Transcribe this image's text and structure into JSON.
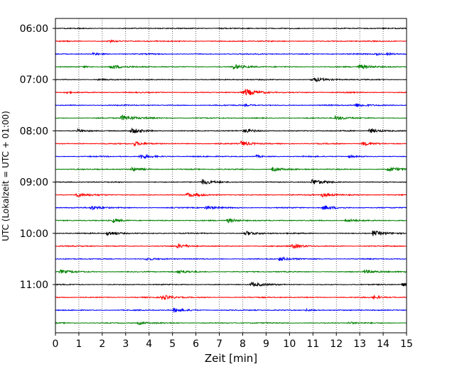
{
  "chart_data": {
    "type": "line",
    "subtype": "helicorder seismogram",
    "xlabel": "Zeit  [min]",
    "ylabel": "UTC (Lokalzeit = UTC + 01:00)",
    "xlim": [
      0,
      15
    ],
    "x_ticks": [
      0,
      1,
      2,
      3,
      4,
      5,
      6,
      7,
      8,
      9,
      10,
      11,
      12,
      13,
      14,
      15
    ],
    "y_tick_labels": [
      "06:00",
      "07:00",
      "08:00",
      "09:00",
      "10:00",
      "11:00"
    ],
    "rows_per_hour": 4,
    "minutes_per_row": 15,
    "row_count": 24,
    "color_cycle": [
      "#000000",
      "#ff0000",
      "#0000ff",
      "#008000"
    ],
    "vertical_grid": "dotted",
    "horizontal_grid": false,
    "series": [
      {
        "start": "06:00",
        "color": "#000000",
        "events": [
          [
            7.0,
            0.3,
            1.0
          ]
        ]
      },
      {
        "start": "06:15",
        "color": "#ff0000",
        "events": [
          [
            2.25,
            0.55,
            1.0
          ]
        ]
      },
      {
        "start": "06:30",
        "color": "#0000ff",
        "events": [
          [
            1.6,
            0.55,
            1.0
          ],
          [
            13.7,
            0.5,
            0.8
          ],
          [
            14.2,
            0.5,
            0.8
          ]
        ]
      },
      {
        "start": "06:45",
        "color": "#008000",
        "events": [
          [
            1.2,
            0.3,
            1.0
          ],
          [
            2.35,
            1.0,
            1.5
          ],
          [
            7.6,
            1.0,
            1.5
          ],
          [
            12.95,
            1.1,
            1.5
          ]
        ]
      },
      {
        "start": "07:00",
        "color": "#000000",
        "events": [
          [
            1.8,
            0.4,
            1.0
          ],
          [
            10.95,
            1.0,
            1.5
          ]
        ]
      },
      {
        "start": "07:15",
        "color": "#ff0000",
        "events": [
          [
            0.4,
            0.55,
            1.0
          ],
          [
            8.05,
            1.5,
            2.0
          ]
        ]
      },
      {
        "start": "07:30",
        "color": "#0000ff",
        "events": [
          [
            8.1,
            0.4,
            1.0
          ],
          [
            12.8,
            0.9,
            1.5
          ]
        ]
      },
      {
        "start": "07:45",
        "color": "#008000",
        "events": [
          [
            2.8,
            1.1,
            2.0
          ],
          [
            11.95,
            0.9,
            1.5
          ]
        ]
      },
      {
        "start": "08:00",
        "color": "#000000",
        "events": [
          [
            0.95,
            0.6,
            1.0
          ],
          [
            3.25,
            1.1,
            1.5
          ],
          [
            8.05,
            0.8,
            1.5
          ],
          [
            13.4,
            1.1,
            1.5
          ]
        ]
      },
      {
        "start": "08:15",
        "color": "#ff0000",
        "events": [
          [
            3.35,
            1.0,
            1.5
          ],
          [
            7.9,
            1.2,
            1.5
          ],
          [
            13.1,
            0.9,
            1.5
          ]
        ]
      },
      {
        "start": "08:30",
        "color": "#0000ff",
        "events": [
          [
            3.6,
            1.0,
            1.5
          ],
          [
            8.55,
            0.5,
            1.0
          ],
          [
            12.5,
            0.5,
            1.0
          ]
        ]
      },
      {
        "start": "08:45",
        "color": "#008000",
        "events": [
          [
            3.25,
            0.8,
            1.5
          ],
          [
            9.25,
            0.8,
            1.5
          ],
          [
            14.2,
            1.0,
            1.5
          ]
        ]
      },
      {
        "start": "09:00",
        "color": "#000000",
        "events": [
          [
            6.25,
            1.0,
            1.5
          ],
          [
            10.95,
            1.2,
            1.5
          ]
        ]
      },
      {
        "start": "09:15",
        "color": "#ff0000",
        "events": [
          [
            0.85,
            0.9,
            1.5
          ],
          [
            5.6,
            1.0,
            1.5
          ],
          [
            11.4,
            0.9,
            1.5
          ]
        ]
      },
      {
        "start": "09:30",
        "color": "#0000ff",
        "events": [
          [
            1.5,
            0.9,
            1.5
          ],
          [
            6.4,
            0.9,
            1.5
          ],
          [
            11.45,
            1.0,
            1.5
          ]
        ]
      },
      {
        "start": "09:45",
        "color": "#008000",
        "events": [
          [
            2.45,
            0.8,
            1.5
          ],
          [
            7.35,
            1.0,
            1.5
          ],
          [
            12.4,
            0.8,
            1.5
          ]
        ]
      },
      {
        "start": "10:00",
        "color": "#000000",
        "events": [
          [
            2.2,
            1.1,
            1.5
          ],
          [
            8.1,
            1.0,
            1.5
          ],
          [
            13.55,
            1.2,
            1.5
          ]
        ]
      },
      {
        "start": "10:15",
        "color": "#ff0000",
        "events": [
          [
            5.2,
            0.8,
            1.5
          ],
          [
            10.1,
            1.0,
            1.5
          ]
        ]
      },
      {
        "start": "10:30",
        "color": "#0000ff",
        "events": [
          [
            3.85,
            0.6,
            1.0
          ],
          [
            9.55,
            0.8,
            1.5
          ]
        ]
      },
      {
        "start": "10:45",
        "color": "#008000",
        "events": [
          [
            0.2,
            0.8,
            1.5
          ],
          [
            5.25,
            0.7,
            1.5
          ],
          [
            13.2,
            0.8,
            1.5
          ],
          [
            14.95,
            0.7,
            1.5
          ]
        ]
      },
      {
        "start": "11:00",
        "color": "#000000",
        "events": [
          [
            8.35,
            1.0,
            1.5
          ],
          [
            14.8,
            0.8,
            1.0
          ]
        ]
      },
      {
        "start": "11:15",
        "color": "#ff0000",
        "events": [
          [
            4.55,
            1.0,
            1.5
          ],
          [
            13.6,
            0.7,
            1.0
          ]
        ]
      },
      {
        "start": "11:30",
        "color": "#0000ff",
        "events": [
          [
            5.05,
            0.9,
            1.5
          ],
          [
            10.7,
            0.5,
            1.0
          ]
        ]
      },
      {
        "start": "11:45",
        "color": "#008000",
        "events": [
          [
            3.55,
            0.6,
            1.0
          ],
          [
            12.5,
            0.5,
            1.0
          ]
        ]
      }
    ]
  }
}
